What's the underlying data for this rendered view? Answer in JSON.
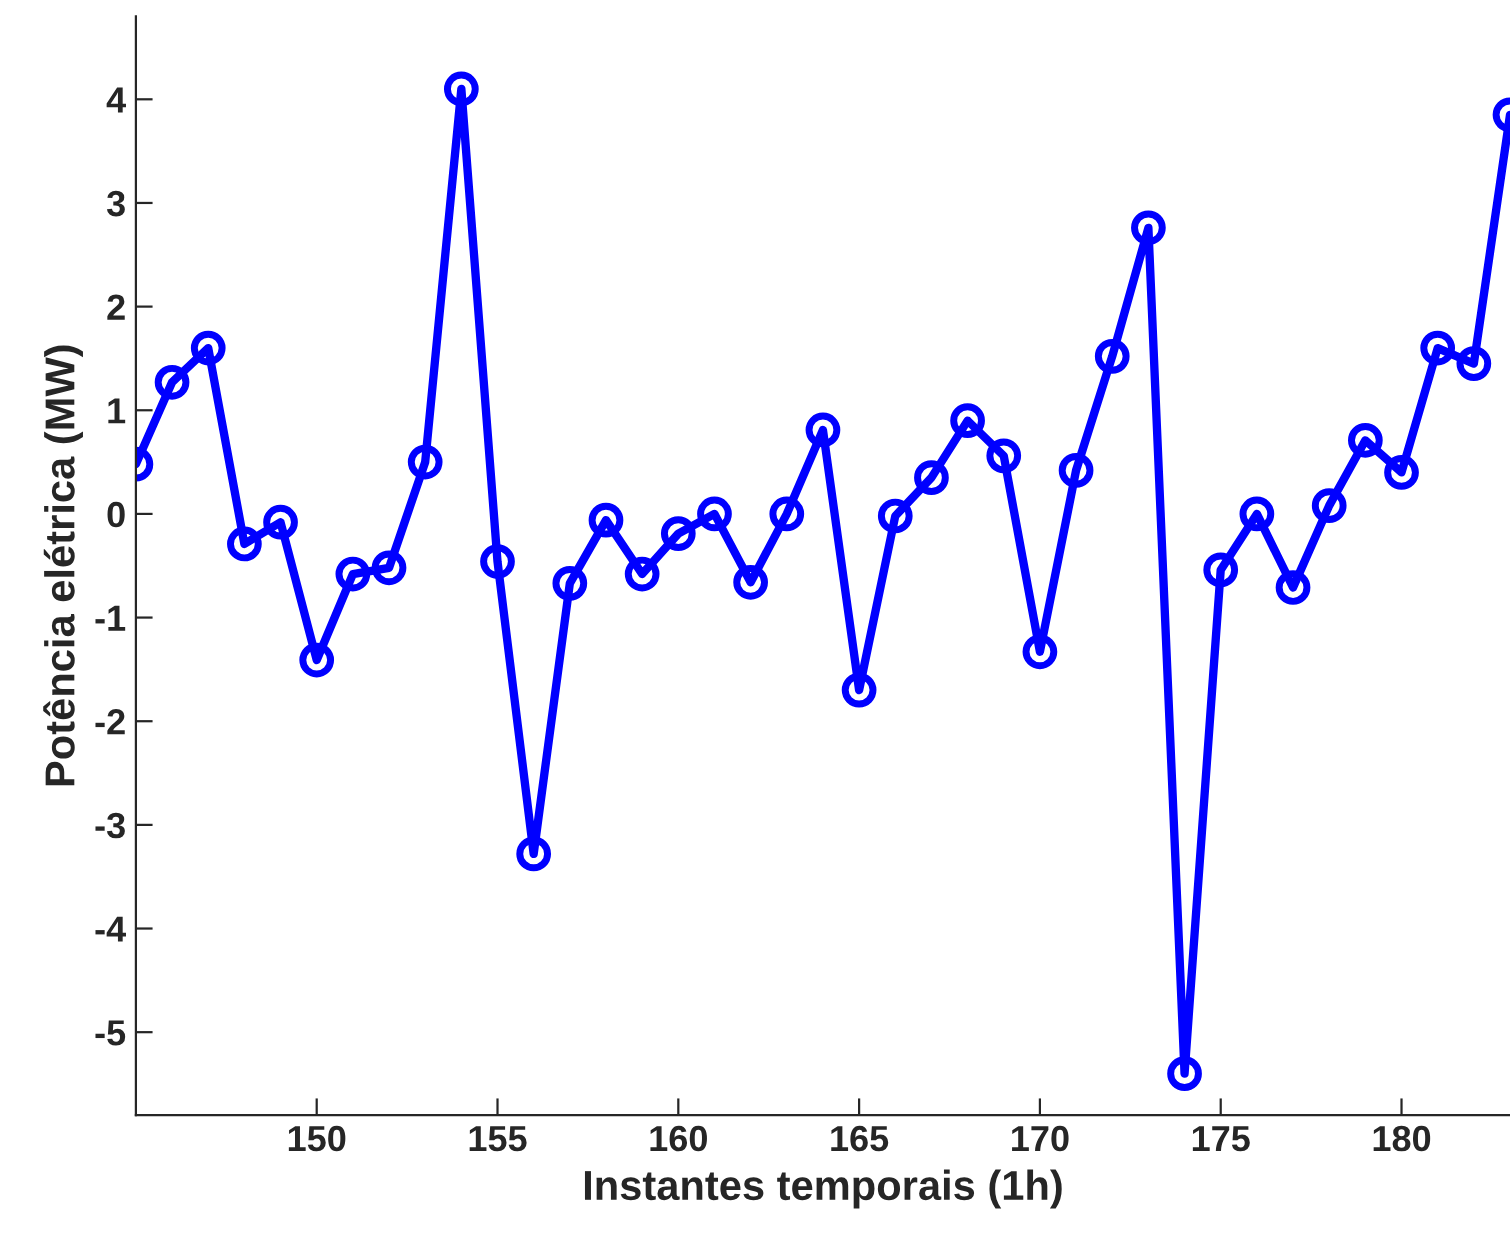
{
  "chart_data": {
    "type": "line",
    "xlabel": "Instantes temporais (1h)",
    "ylabel": "Potência elétrica (MW)",
    "x": [
      145,
      146,
      147,
      148,
      149,
      150,
      151,
      152,
      153,
      154,
      155,
      156,
      157,
      158,
      159,
      160,
      161,
      162,
      163,
      164,
      165,
      166,
      167,
      168,
      169,
      170,
      171,
      172,
      173,
      174,
      175,
      176,
      177,
      178,
      179,
      180,
      181,
      182,
      183
    ],
    "series": [
      {
        "color": "#0000ff",
        "values": [
          0.48,
          1.27,
          1.6,
          -0.29,
          -0.08,
          -1.41,
          -0.58,
          -0.52,
          0.5,
          4.1,
          -0.46,
          -3.28,
          -0.67,
          -0.06,
          -0.58,
          -0.19,
          0.0,
          -0.66,
          0.0,
          0.81,
          -1.7,
          -0.02,
          0.35,
          0.9,
          0.56,
          -1.33,
          0.42,
          1.52,
          2.76,
          -5.4,
          -0.54,
          0.0,
          -0.71,
          0.08,
          0.71,
          0.4,
          1.6,
          1.45,
          3.85
        ]
      }
    ],
    "xlim": [
      145,
      183
    ],
    "ylim": [
      -5.8,
      4.8
    ],
    "xticks": [
      150,
      155,
      160,
      165,
      170,
      175,
      180
    ],
    "yticks": [
      -5,
      -4,
      -3,
      -2,
      -1,
      0,
      1,
      2,
      3,
      4
    ],
    "marker": "circle",
    "line_style": "solid",
    "grid": false
  }
}
